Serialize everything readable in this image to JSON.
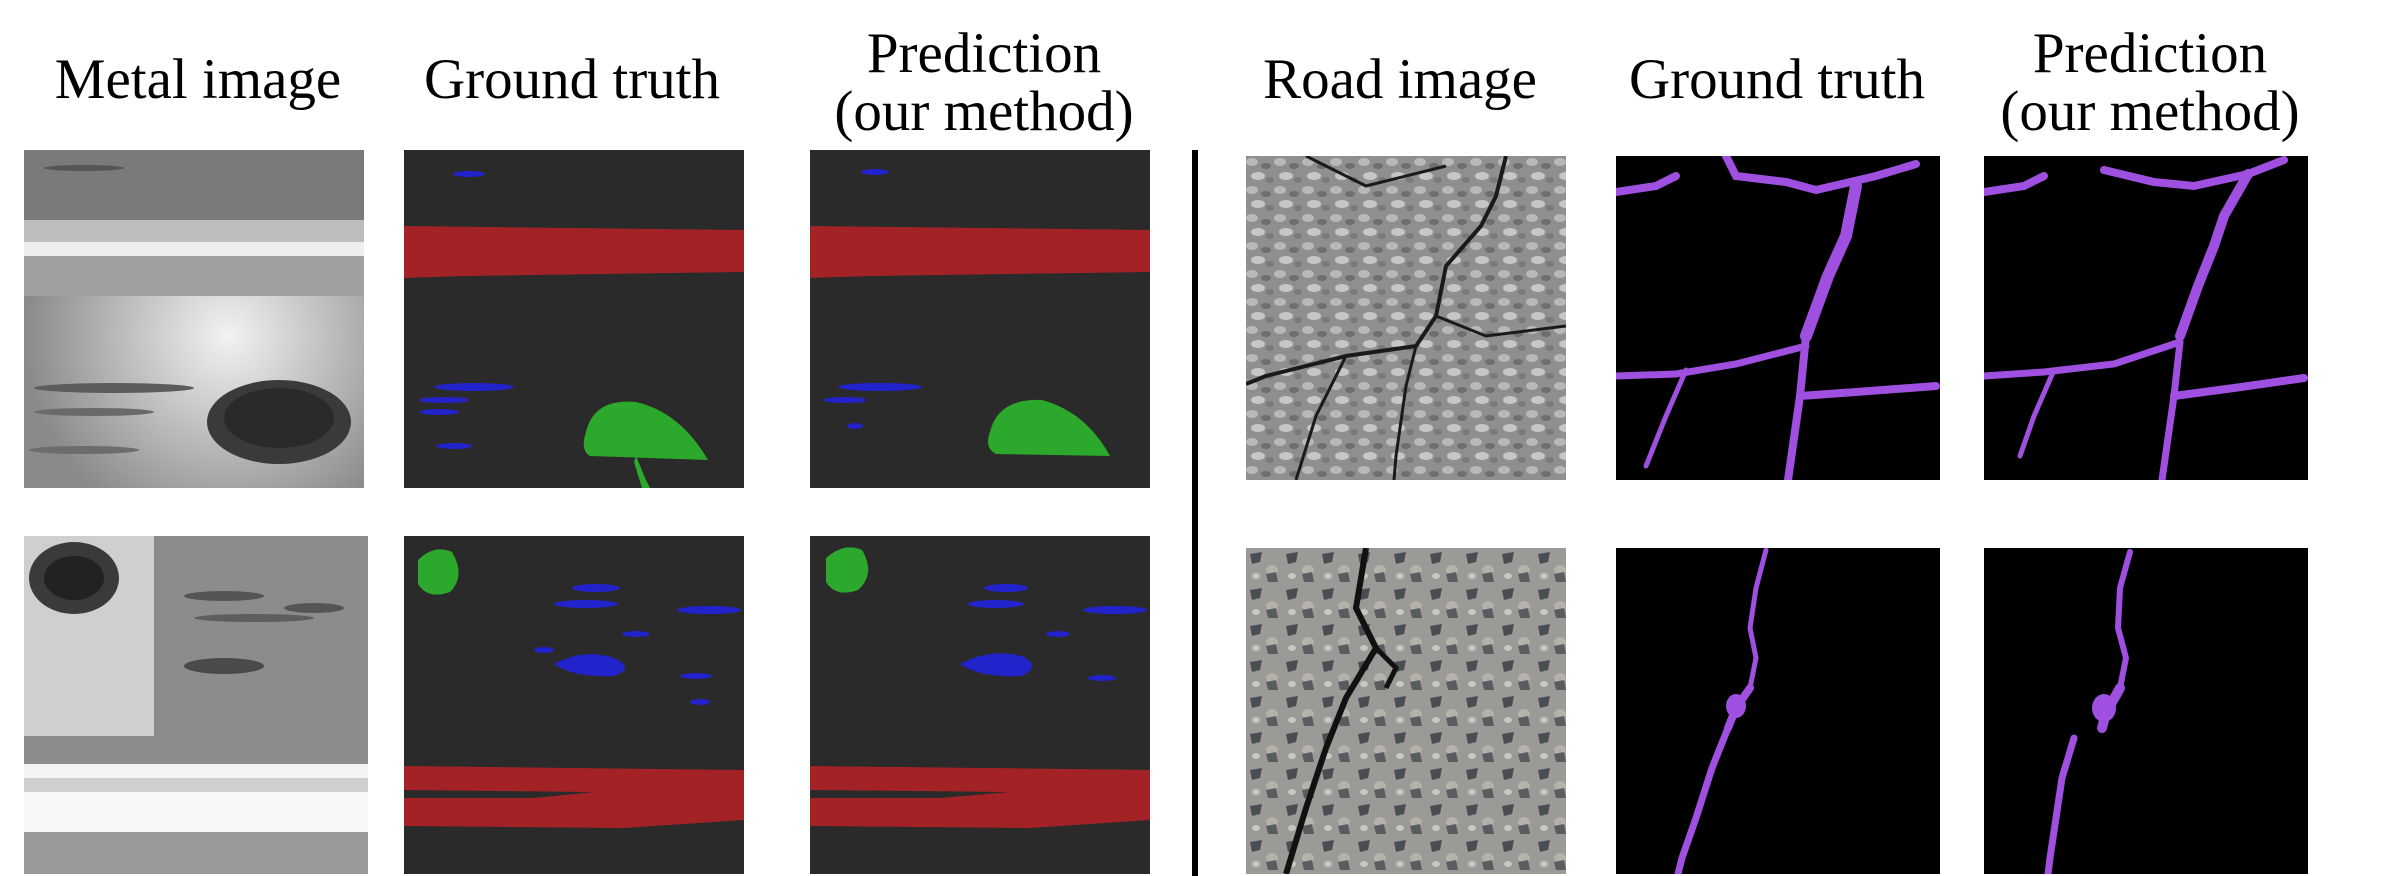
{
  "metal_section": {
    "headers": {
      "image": "Metal image",
      "ground_truth": "Ground truth",
      "prediction_line1": "Prediction",
      "prediction_line2": "(our method)"
    }
  },
  "road_section": {
    "headers": {
      "image": "Road image",
      "ground_truth": "Ground truth",
      "prediction_line1": "Prediction",
      "prediction_line2": "(our method)"
    }
  },
  "colors": {
    "mask_background": "#2a2a2a",
    "road_mask_background": "#000000",
    "defect_red": "#a32226",
    "defect_green": "#2ca82c",
    "defect_blue": "#2323cc",
    "crack_purple": "#a050e0"
  }
}
